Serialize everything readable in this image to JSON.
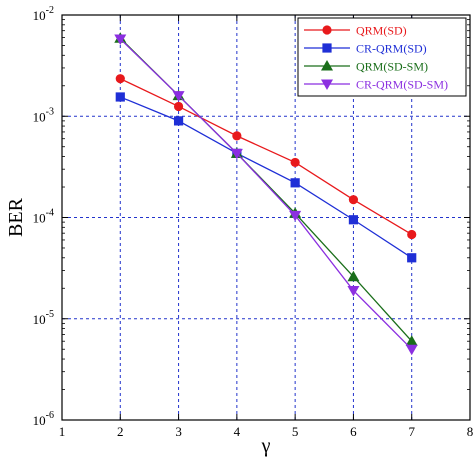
{
  "chart_data": {
    "type": "line",
    "title": "",
    "xlabel": "γ",
    "ylabel": "BER",
    "xlim": [
      1,
      8
    ],
    "ylim": [
      1e-06,
      0.01
    ],
    "yscale": "log",
    "grid": true,
    "grid_style": "dashed",
    "grid_color": "#2233cc",
    "legend_position": "top-right",
    "x_ticks": [
      1,
      2,
      3,
      4,
      5,
      6,
      7,
      8
    ],
    "x_tick_labels": [
      "1",
      "2",
      "3",
      "4",
      "5",
      "6",
      "7",
      "8"
    ],
    "y_ticks": [
      1e-06,
      1e-05,
      0.0001,
      0.001,
      0.01
    ],
    "y_tick_labels": [
      {
        "base": "10",
        "exp": "-6"
      },
      {
        "base": "10",
        "exp": "-5"
      },
      {
        "base": "10",
        "exp": "-4"
      },
      {
        "base": "10",
        "exp": "-3"
      },
      {
        "base": "10",
        "exp": "-2"
      }
    ],
    "series": [
      {
        "name": "QRM(SD)",
        "color": "#e8191c",
        "marker": "circle",
        "x": [
          2,
          3,
          4,
          5,
          6,
          7
        ],
        "y": [
          0.00235,
          0.00125,
          0.00064,
          0.00035,
          0.00015,
          6.8e-05
        ]
      },
      {
        "name": "CR-QRM(SD)",
        "color": "#1f2fd6",
        "marker": "square",
        "x": [
          2,
          3,
          4,
          5,
          6,
          7
        ],
        "y": [
          0.00155,
          0.0009,
          0.00043,
          0.00022,
          9.5e-05,
          4e-05
        ]
      },
      {
        "name": "QRM(SD-SM)",
        "color": "#1a6e1a",
        "marker": "triangle-up",
        "x": [
          2,
          3,
          4,
          5,
          6,
          7
        ],
        "y": [
          0.0059,
          0.0016,
          0.00043,
          0.00011,
          2.6e-05,
          6e-06
        ]
      },
      {
        "name": "CR-QRM(SD-SM)",
        "color": "#8b2fe0",
        "marker": "triangle-down",
        "x": [
          2,
          3,
          4,
          5,
          6,
          7
        ],
        "y": [
          0.0058,
          0.0016,
          0.00043,
          0.000105,
          1.9e-05,
          5e-06
        ]
      }
    ]
  }
}
